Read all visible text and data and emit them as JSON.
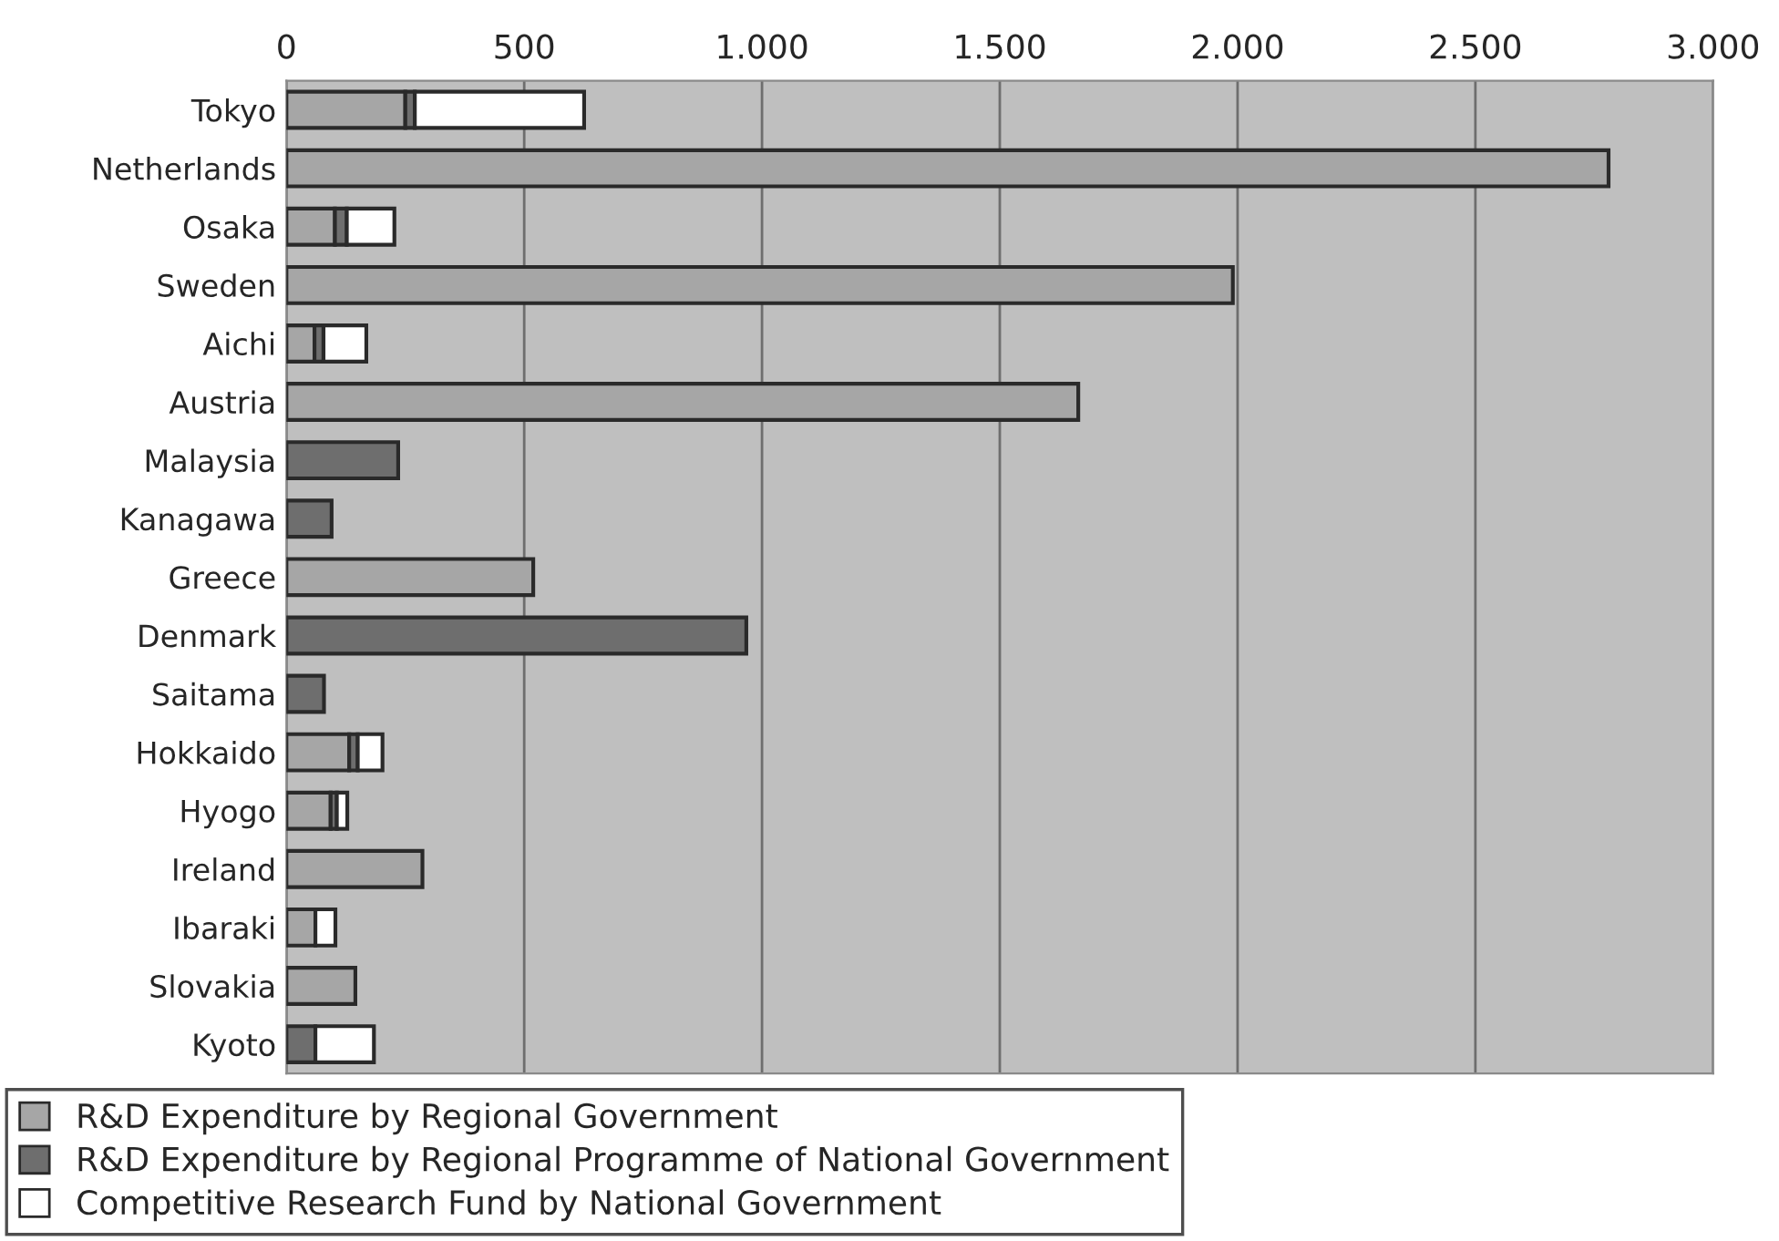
{
  "chart_data": {
    "type": "bar",
    "orientation": "horizontal",
    "stacked": true,
    "categories": [
      "Tokyo",
      "Netherlands",
      "Osaka",
      "Sweden",
      "Aichi",
      "Austria",
      "Malaysia",
      "Kanagawa",
      "Greece",
      "Denmark",
      "Saitama",
      "Hokkaido",
      "Hyogo",
      "Ireland",
      "Ibaraki",
      "Slovakia",
      "Kyoto"
    ],
    "series": [
      {
        "name": "R&D Expenditure by Regional Government",
        "color": "#a6a6a6",
        "values": [
          250,
          2780,
          102,
          1990,
          59,
          1665,
          null,
          null,
          519,
          null,
          null,
          132,
          93,
          286,
          61,
          145,
          null
        ]
      },
      {
        "name": "R&D Expenditure by Regional Programme of National Government",
        "color": "#6e6e6e",
        "values": [
          20,
          null,
          25,
          null,
          19,
          null,
          235,
          95,
          null,
          967,
          79,
          18,
          13,
          null,
          null,
          null,
          61
        ]
      },
      {
        "name": "Competitive Research Fund by National Government",
        "color": "#ffffff",
        "values": [
          356,
          null,
          100,
          null,
          90,
          null,
          null,
          null,
          null,
          null,
          null,
          52,
          22,
          null,
          42,
          null,
          123
        ]
      }
    ],
    "xlim": [
      0,
      3000
    ],
    "xticks": [
      0,
      500,
      {
        "value": 1000,
        "label": "1.000"
      },
      {
        "value": 1500,
        "label": "1.500"
      },
      {
        "value": 2000,
        "label": "2.000"
      },
      {
        "value": 2500,
        "label": "2.500"
      },
      {
        "value": 3000,
        "label": "3.000"
      }
    ],
    "grid": "x",
    "legend": "bottom"
  }
}
